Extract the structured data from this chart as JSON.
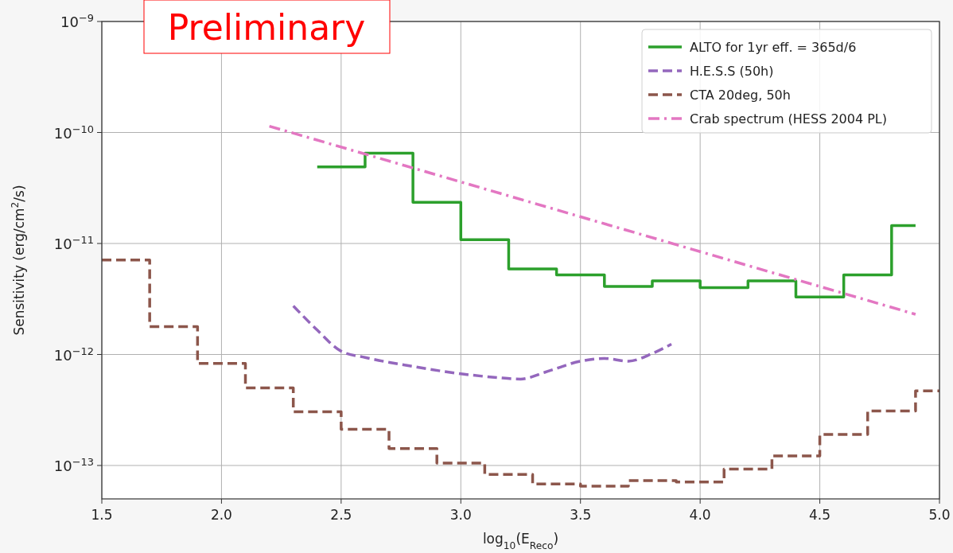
{
  "chart_data": {
    "type": "line",
    "xlabel": "log$_{10}$(E$_{Reco}$)",
    "ylabel": "Sensitivity (erg/cm$^{2}$/s)",
    "annotations": [
      "Preliminary"
    ],
    "xlim": [
      1.5,
      5.0
    ],
    "xticks": [
      {
        "value": 1.5,
        "label": "1.5"
      },
      {
        "value": 2.0,
        "label": "2.0"
      },
      {
        "value": 2.5,
        "label": "2.5"
      },
      {
        "value": 3.0,
        "label": "3.0"
      },
      {
        "value": 3.5,
        "label": "3.5"
      },
      {
        "value": 4.0,
        "label": "4.0"
      },
      {
        "value": 4.5,
        "label": "4.5"
      },
      {
        "value": 5.0,
        "label": "5.0"
      }
    ],
    "ylim": [
      5e-14,
      1e-09
    ],
    "yticks": [
      {
        "value": 1e-13,
        "label": "10$^{−13}$"
      },
      {
        "value": 1e-12,
        "label": "10$^{−12}$"
      },
      {
        "value": 1e-11,
        "label": "10$^{−11}$"
      },
      {
        "value": 1e-10,
        "label": "10$^{−10}$"
      },
      {
        "value": 1e-09,
        "label": "10$^{−9}$"
      }
    ],
    "log": "y",
    "grid": true,
    "legend": "top right",
    "series": [
      {
        "name": "ALTO for 1yr eff. = 365d/6",
        "type": "step",
        "color": "#2ca02c",
        "line_style": "solid",
        "x": [
          2.4,
          2.6,
          2.8,
          3.0,
          3.2,
          3.4,
          3.6,
          3.8,
          4.0,
          4.2,
          4.4,
          4.6,
          4.8,
          4.9
        ],
        "values": [
          4.9e-11,
          6.5e-11,
          2.35e-11,
          1.08e-11,
          5.9e-12,
          5.2e-12,
          4.1e-12,
          4.6e-12,
          4e-12,
          4.6e-12,
          3.3e-12,
          5.2e-12,
          1.45e-11,
          1.45e-11
        ]
      },
      {
        "name": "H.E.S.S (50h)",
        "type": "line",
        "color": "#9467bd",
        "line_style": "dashed",
        "x": [
          2.3,
          2.4,
          2.5,
          2.6,
          2.8,
          3.0,
          3.15,
          3.25,
          3.35,
          3.5,
          3.6,
          3.7,
          3.8,
          3.88
        ],
        "values": [
          2.74e-12,
          1.66e-12,
          1.07e-12,
          9.4e-13,
          7.8e-13,
          6.7e-13,
          6.2e-13,
          6e-13,
          6.9e-13,
          8.7e-13,
          9.2e-13,
          8.7e-13,
          1.02e-12,
          1.24e-12
        ]
      },
      {
        "name": "CTA 20deg, 50h",
        "type": "step",
        "color": "#8c564b",
        "line_style": "dashed",
        "x": [
          1.5,
          1.7,
          1.9,
          2.1,
          2.3,
          2.5,
          2.7,
          2.9,
          3.1,
          3.3,
          3.5,
          3.7,
          3.9,
          4.1,
          4.3,
          4.5,
          4.7,
          4.9,
          5.0
        ],
        "values": [
          7.1e-12,
          1.78e-12,
          8.3e-13,
          5e-13,
          3.05e-13,
          2.12e-13,
          1.42e-13,
          1.05e-13,
          8.3e-14,
          6.8e-14,
          6.5e-14,
          7.3e-14,
          7.1e-14,
          9.3e-14,
          1.22e-13,
          1.9e-13,
          3.1e-13,
          4.7e-13,
          4.7e-13
        ]
      },
      {
        "name": "Crab spectrum (HESS 2004 PL)",
        "type": "line",
        "color": "#e377c2",
        "line_style": "dashdot",
        "x": [
          2.2,
          4.9
        ],
        "values": [
          1.14e-10,
          2.3e-12
        ]
      }
    ]
  }
}
